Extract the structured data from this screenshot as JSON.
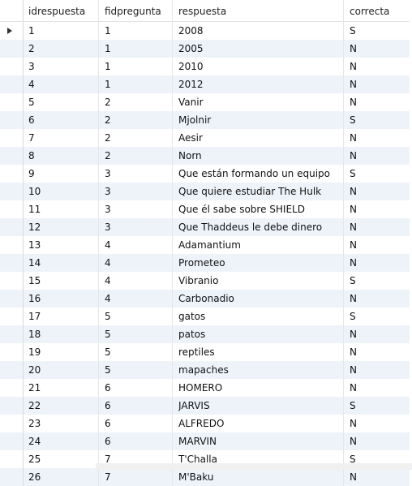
{
  "columns": [
    "idrespuesta",
    "fidpregunta",
    "respuesta",
    "correcta"
  ],
  "rows": [
    [
      "1",
      "1",
      "2008",
      "S"
    ],
    [
      "2",
      "1",
      "2005",
      "N"
    ],
    [
      "3",
      "1",
      "2010",
      "N"
    ],
    [
      "4",
      "1",
      "2012",
      "N"
    ],
    [
      "5",
      "2",
      "Vanir",
      "N"
    ],
    [
      "6",
      "2",
      "Mjolnir",
      "S"
    ],
    [
      "7",
      "2",
      "Aesir",
      "N"
    ],
    [
      "8",
      "2",
      "Norn",
      "N"
    ],
    [
      "9",
      "3",
      "Que están formando un equipo",
      "S"
    ],
    [
      "10",
      "3",
      "Que quiere estudiar The Hulk",
      "N"
    ],
    [
      "11",
      "3",
      "Que él sabe sobre SHIELD",
      "N"
    ],
    [
      "12",
      "3",
      "Que Thaddeus le debe dinero",
      "N"
    ],
    [
      "13",
      "4",
      "Adamantium",
      "N"
    ],
    [
      "14",
      "4",
      "Prometeo",
      "N"
    ],
    [
      "15",
      "4",
      "Vibranio",
      "S"
    ],
    [
      "16",
      "4",
      "Carbonadio",
      "N"
    ],
    [
      "17",
      "5",
      "gatos",
      "S"
    ],
    [
      "18",
      "5",
      "patos",
      "N"
    ],
    [
      "19",
      "5",
      "reptiles",
      "N"
    ],
    [
      "20",
      "5",
      "mapaches",
      "N"
    ],
    [
      "21",
      "6",
      "HOMERO",
      "N"
    ],
    [
      "22",
      "6",
      "JARVIS",
      "S"
    ],
    [
      "23",
      "6",
      "ALFREDO",
      "N"
    ],
    [
      "24",
      "6",
      "MARVIN",
      "N"
    ],
    [
      "25",
      "7",
      "T'Challa",
      "S"
    ],
    [
      "26",
      "7",
      "M'Baku",
      "N"
    ]
  ],
  "current_row_icon": "current-row-arrow-icon",
  "colors": {
    "alt_row": "#eef3fa",
    "header_bg": "#ffffff"
  }
}
